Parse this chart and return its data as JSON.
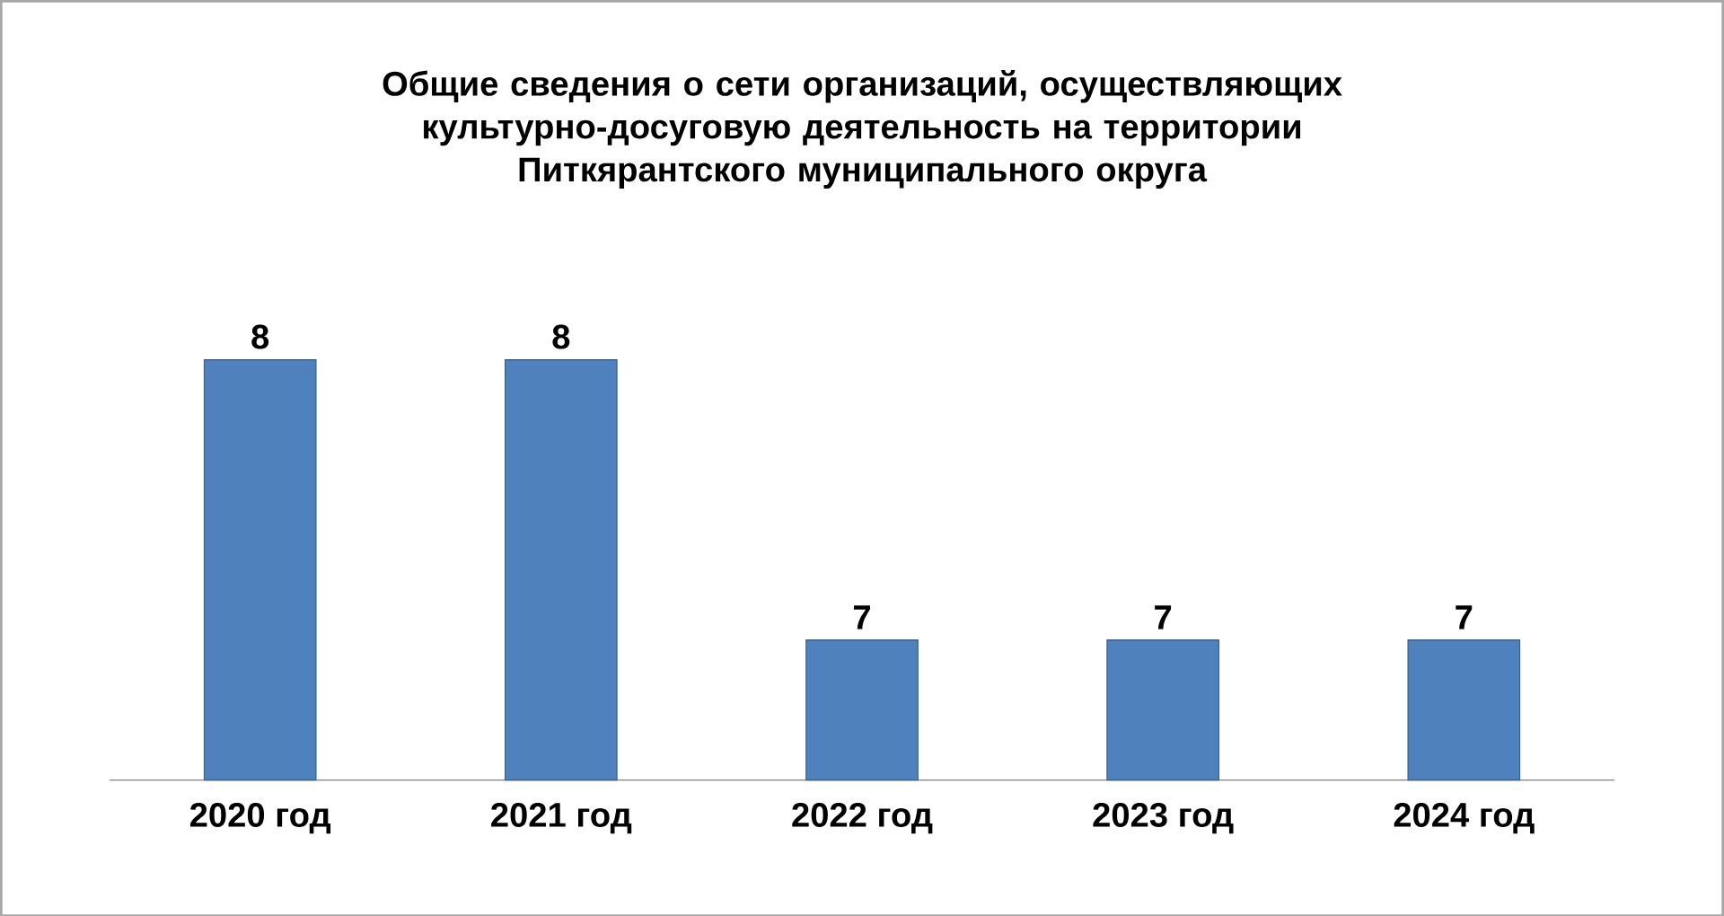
{
  "chart_data": {
    "type": "bar",
    "title": "Общие сведения о сети организаций, осуществляющих культурно-досуговую деятельность на территории Питкярантского муниципального округа",
    "categories": [
      "2020 год",
      "2021 год",
      "2022 год",
      "2023 год",
      "2024 год"
    ],
    "values": [
      8,
      8,
      7,
      7,
      7
    ],
    "color": "#4f81bd",
    "ylim": [
      6.5,
      8
    ],
    "data_labels": true,
    "tick_labels": "x"
  }
}
